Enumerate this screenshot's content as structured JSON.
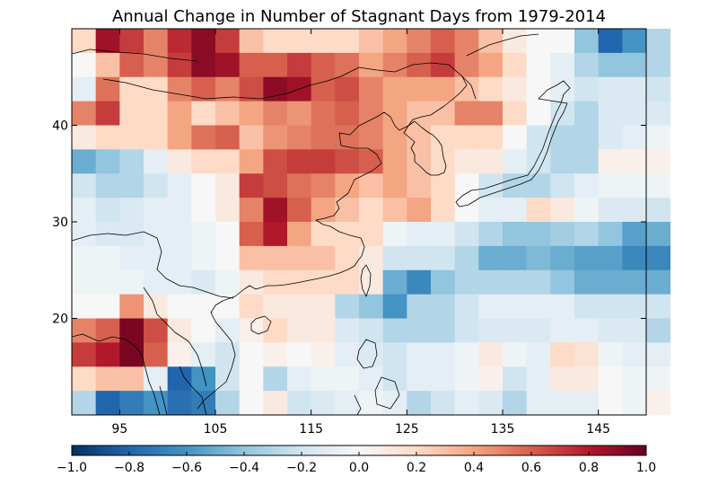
{
  "title": "Annual Change in Number of Stagnant Days from 1979-2014",
  "map": {
    "lon_range": [
      90,
      150
    ],
    "lat_range": [
      10,
      50
    ],
    "cell_size_deg": 2.5,
    "x_ticks": [
      95,
      105,
      115,
      125,
      135,
      145
    ],
    "x_tick_labels": [
      "95",
      "105",
      "115",
      "125",
      "135",
      "145"
    ],
    "y_ticks": [
      20,
      30,
      40
    ],
    "y_tick_labels": [
      "20",
      "30",
      "40"
    ],
    "grid_rows_north_to_south": [
      [
        0.2,
        0.85,
        0.7,
        0.5,
        0.75,
        0.9,
        0.7,
        0.3,
        0.2,
        0.2,
        0.2,
        0.2,
        0.3,
        0.4,
        0.5,
        0.6,
        0.5,
        0.3,
        0.1,
        0.0,
        0.0,
        -0.4,
        -0.8,
        -0.6,
        -0.3
      ],
      [
        0.0,
        0.3,
        0.6,
        0.5,
        0.7,
        0.9,
        0.85,
        0.6,
        0.6,
        0.7,
        0.6,
        0.55,
        0.4,
        0.5,
        0.6,
        0.7,
        0.5,
        0.4,
        0.2,
        0.0,
        -0.1,
        -0.3,
        -0.4,
        -0.4,
        -0.3
      ],
      [
        -0.1,
        0.55,
        0.2,
        0.2,
        0.5,
        0.6,
        0.5,
        0.65,
        0.9,
        0.85,
        0.6,
        0.65,
        0.5,
        0.4,
        0.4,
        0.4,
        0.3,
        0.2,
        0.1,
        0.0,
        -0.1,
        -0.2,
        -0.15,
        -0.15,
        -0.2
      ],
      [
        0.5,
        0.7,
        0.2,
        0.2,
        0.4,
        0.2,
        0.3,
        0.4,
        0.5,
        0.45,
        0.55,
        0.6,
        0.5,
        0.4,
        0.3,
        0.3,
        0.5,
        0.5,
        0.2,
        0.0,
        -0.2,
        -0.3,
        -0.15,
        -0.15,
        -0.15
      ],
      [
        0.1,
        0.2,
        0.2,
        0.2,
        0.4,
        0.55,
        0.6,
        0.3,
        0.45,
        0.5,
        0.55,
        0.55,
        0.5,
        0.4,
        0.3,
        0.2,
        0.2,
        0.2,
        0.0,
        -0.2,
        -0.3,
        -0.3,
        -0.15,
        -0.1,
        -0.05
      ],
      [
        -0.5,
        -0.4,
        -0.3,
        -0.1,
        0.1,
        0.2,
        0.2,
        0.4,
        0.65,
        0.7,
        0.7,
        0.65,
        0.6,
        0.4,
        0.3,
        0.2,
        0.1,
        0.1,
        -0.1,
        -0.2,
        -0.3,
        -0.3,
        0.05,
        0.05,
        0.05
      ],
      [
        -0.2,
        -0.3,
        -0.3,
        -0.2,
        -0.1,
        0.0,
        0.1,
        0.7,
        0.65,
        0.55,
        0.5,
        0.4,
        0.3,
        0.4,
        0.3,
        0.2,
        0.0,
        -0.2,
        -0.3,
        -0.3,
        -0.2,
        -0.1,
        -0.05,
        -0.05,
        -0.05
      ],
      [
        -0.1,
        -0.2,
        -0.15,
        -0.1,
        -0.1,
        0.0,
        0.1,
        0.5,
        0.85,
        0.6,
        0.4,
        0.3,
        0.2,
        0.3,
        0.4,
        0.2,
        0.0,
        -0.1,
        -0.1,
        0.2,
        0.1,
        -0.05,
        -0.15,
        -0.15,
        -0.2
      ],
      [
        -0.1,
        -0.15,
        -0.15,
        -0.1,
        -0.1,
        -0.05,
        0.0,
        0.6,
        0.8,
        0.4,
        0.2,
        0.2,
        0.2,
        -0.05,
        -0.1,
        -0.1,
        -0.2,
        -0.3,
        -0.4,
        -0.4,
        -0.35,
        -0.3,
        -0.4,
        -0.55,
        -0.5
      ],
      [
        -0.05,
        -0.05,
        -0.1,
        -0.1,
        -0.1,
        -0.05,
        0.0,
        0.3,
        0.3,
        0.3,
        0.3,
        0.2,
        0.1,
        -0.2,
        -0.2,
        -0.2,
        -0.3,
        -0.5,
        -0.5,
        -0.45,
        -0.5,
        -0.55,
        -0.55,
        -0.65,
        -0.65
      ],
      [
        -0.05,
        -0.05,
        -0.05,
        -0.1,
        -0.1,
        -0.15,
        -0.05,
        0.1,
        0.2,
        0.2,
        0.2,
        0.2,
        0.1,
        -0.5,
        -0.65,
        -0.4,
        -0.3,
        -0.3,
        -0.3,
        -0.3,
        -0.4,
        -0.5,
        -0.5,
        -0.5,
        -0.5
      ],
      [
        0.0,
        0.0,
        0.45,
        0.1,
        0.0,
        0.0,
        0.0,
        0.2,
        0.1,
        0.1,
        0.1,
        -0.3,
        -0.4,
        -0.6,
        -0.3,
        -0.3,
        -0.2,
        -0.1,
        -0.1,
        -0.1,
        -0.1,
        -0.2,
        -0.2,
        -0.2,
        -0.2
      ],
      [
        0.5,
        0.6,
        0.95,
        0.65,
        0.1,
        0.0,
        -0.1,
        0.05,
        0.2,
        0.1,
        0.1,
        -0.15,
        -0.2,
        -0.3,
        -0.3,
        -0.3,
        -0.2,
        -0.15,
        -0.15,
        -0.15,
        -0.1,
        -0.1,
        -0.15,
        -0.15,
        -0.3
      ],
      [
        0.7,
        0.8,
        0.95,
        0.6,
        0.05,
        -0.1,
        -0.2,
        0.0,
        0.05,
        0.0,
        0.05,
        -0.1,
        -0.15,
        -0.2,
        -0.1,
        -0.1,
        -0.05,
        0.1,
        -0.05,
        -0.1,
        0.2,
        0.15,
        -0.05,
        -0.1,
        -0.1
      ],
      [
        0.2,
        0.3,
        0.3,
        -0.1,
        -0.8,
        -0.6,
        -0.2,
        0.0,
        -0.3,
        -0.1,
        -0.05,
        -0.05,
        -0.1,
        -0.2,
        -0.1,
        -0.1,
        -0.05,
        0.05,
        -0.2,
        -0.1,
        0.1,
        0.1,
        0.0,
        -0.05,
        -0.05
      ],
      [
        -0.3,
        -0.8,
        -0.7,
        -0.6,
        -0.75,
        -0.7,
        -0.3,
        0.0,
        0.1,
        -0.2,
        -0.15,
        -0.1,
        -0.05,
        -0.1,
        -0.3,
        -0.2,
        -0.1,
        -0.15,
        -0.3,
        -0.1,
        -0.1,
        -0.1,
        0.0,
        -0.05,
        0.05
      ]
    ]
  },
  "colorbar": {
    "min": -1.0,
    "max": 1.0,
    "ticks": [
      -1.0,
      -0.8,
      -0.6,
      -0.4,
      -0.2,
      0.0,
      0.2,
      0.4,
      0.6,
      0.8,
      1.0
    ],
    "tick_labels": [
      "−1.0",
      "−0.8",
      "−0.6",
      "−0.4",
      "−0.2",
      "0.0",
      "0.2",
      "0.4",
      "0.6",
      "0.8",
      "1.0"
    ],
    "colormap": "RdBu_r",
    "stops": [
      "#053061",
      "#2166ac",
      "#4393c3",
      "#92c5de",
      "#d1e5f0",
      "#f7f7f7",
      "#fddbc7",
      "#f4a582",
      "#d6604d",
      "#b2182b",
      "#67001f"
    ]
  }
}
